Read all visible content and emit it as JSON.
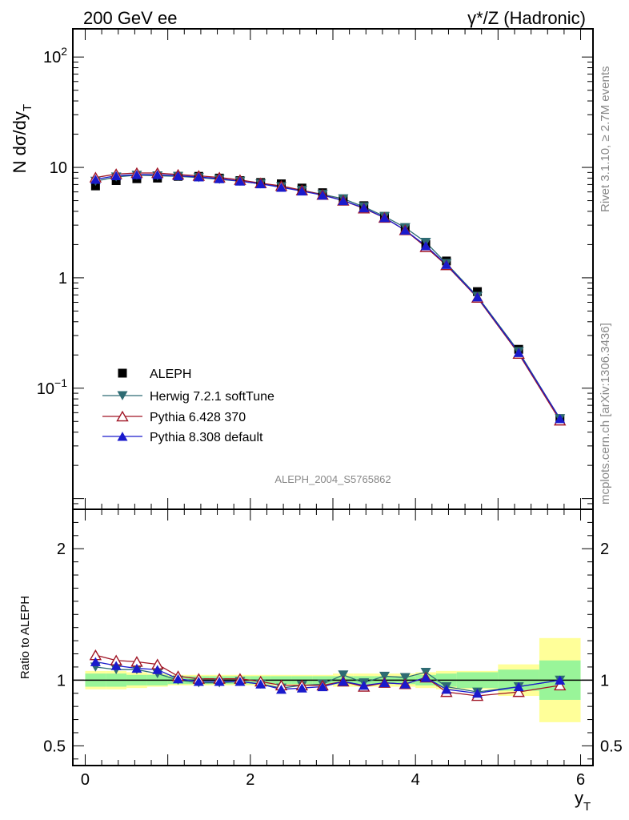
{
  "header": {
    "left": "200 GeV ee",
    "right": "γ*/Z (Hadronic)"
  },
  "side_labels": {
    "rivet": "Rivet 3.1.10, ≥ 2.7M events",
    "mcplots": "mcplots.cern.ch [arXiv:1306.3436]"
  },
  "analysis_id": "ALEPH_2004_S5765862",
  "chart_data": [
    {
      "type": "scatter",
      "panel": "main",
      "ylabel": "N dσ/dy",
      "ylabel_sub": "T",
      "xlabel": "y",
      "xlabel_sub": "T",
      "yscale": "log",
      "xlim": [
        -0.15,
        6.15
      ],
      "ylim": [
        0.008,
        180
      ],
      "ytick_labels": [
        {
          "value": 100,
          "base": "10",
          "exp": "2"
        },
        {
          "value": 10,
          "base": "10",
          "exp": ""
        },
        {
          "value": 1,
          "base": "1",
          "exp": ""
        },
        {
          "value": 0.1,
          "base": "10",
          "exp": "−1"
        }
      ],
      "x": [
        0.125,
        0.375,
        0.625,
        0.875,
        1.125,
        1.375,
        1.625,
        1.875,
        2.125,
        2.375,
        2.625,
        2.875,
        3.125,
        3.375,
        3.625,
        3.875,
        4.125,
        4.375,
        4.75,
        5.25,
        5.75
      ],
      "series": [
        {
          "name": "ALEPH",
          "style": "square",
          "color": "#000000",
          "values": [
            6.8,
            7.6,
            7.9,
            8.0,
            8.3,
            8.3,
            8.0,
            7.6,
            7.3,
            7.1,
            6.5,
            5.9,
            5.1,
            4.5,
            3.6,
            2.8,
            2.0,
            1.42,
            0.75,
            0.225,
            0.053
          ]
        },
        {
          "name": "Herwig 7.2.1 softTune",
          "style": "triangle-down",
          "color": "#2e6b73",
          "values": [
            7.5,
            8.2,
            8.5,
            8.4,
            8.3,
            8.1,
            7.8,
            7.5,
            7.1,
            6.7,
            6.2,
            5.7,
            5.2,
            4.4,
            3.6,
            2.85,
            2.1,
            1.35,
            0.68,
            0.215,
            0.053
          ]
        },
        {
          "name": "Pythia 6.428 370",
          "style": "triangle-open",
          "color": "#a01525",
          "values": [
            8.1,
            8.7,
            8.9,
            8.9,
            8.6,
            8.4,
            8.1,
            7.7,
            7.2,
            6.8,
            6.2,
            5.65,
            5.0,
            4.25,
            3.5,
            2.7,
            1.9,
            1.3,
            0.66,
            0.205,
            0.051
          ]
        },
        {
          "name": "Pythia 8.308 default",
          "style": "triangle-up",
          "color": "#1a1acc",
          "values": [
            7.8,
            8.4,
            8.6,
            8.6,
            8.4,
            8.2,
            7.9,
            7.5,
            7.1,
            6.6,
            6.1,
            5.6,
            5.0,
            4.3,
            3.5,
            2.7,
            1.95,
            1.32,
            0.67,
            0.21,
            0.053
          ]
        }
      ]
    },
    {
      "type": "scatter",
      "panel": "ratio",
      "ylabel": "Ratio to ALEPH",
      "xlabel": "y",
      "xlabel_sub": "T",
      "xlim": [
        -0.15,
        6.15
      ],
      "ylim": [
        0.35,
        2.3
      ],
      "ytick_labels": [
        {
          "value": 2,
          "label": "2"
        },
        {
          "value": 1,
          "label": "1"
        },
        {
          "value": 0.5,
          "label": "0.5"
        }
      ],
      "xtick_labels": [
        {
          "value": 0,
          "label": "0"
        },
        {
          "value": 2,
          "label": "2"
        },
        {
          "value": 4,
          "label": "4"
        },
        {
          "value": 6,
          "label": "6"
        }
      ],
      "x": [
        0.125,
        0.375,
        0.625,
        0.875,
        1.125,
        1.375,
        1.625,
        1.875,
        2.125,
        2.375,
        2.625,
        2.875,
        3.125,
        3.375,
        3.625,
        3.875,
        4.125,
        4.375,
        4.75,
        5.25,
        5.75
      ],
      "bands": {
        "edges": [
          0,
          0.25,
          0.5,
          0.75,
          1.0,
          1.25,
          1.5,
          1.75,
          2.0,
          2.25,
          2.5,
          2.75,
          3.0,
          3.25,
          3.5,
          3.75,
          4.0,
          4.25,
          4.5,
          5.0,
          5.5,
          6.0
        ],
        "green": [
          0.05,
          0.05,
          0.04,
          0.04,
          0.03,
          0.03,
          0.03,
          0.03,
          0.03,
          0.03,
          0.03,
          0.03,
          0.03,
          0.03,
          0.03,
          0.03,
          0.04,
          0.05,
          0.06,
          0.08,
          0.15
        ],
        "yellow": [
          0.07,
          0.07,
          0.06,
          0.05,
          0.04,
          0.04,
          0.04,
          0.04,
          0.04,
          0.04,
          0.04,
          0.04,
          0.05,
          0.05,
          0.05,
          0.05,
          0.06,
          0.07,
          0.07,
          0.12,
          0.32
        ],
        "green_color": "#99f599",
        "yellow_color": "#ffff99"
      },
      "series": [
        {
          "name": "Herwig 7.2.1 softTune",
          "style": "triangle-down",
          "color": "#2e6b73",
          "values": [
            1.1,
            1.08,
            1.08,
            1.05,
            1.0,
            0.98,
            0.98,
            0.99,
            0.97,
            0.94,
            0.96,
            0.97,
            1.04,
            0.98,
            1.03,
            1.02,
            1.06,
            0.95,
            0.91,
            0.95,
            1.0
          ]
        },
        {
          "name": "Pythia 6.428 370",
          "style": "triangle-open",
          "color": "#a01525",
          "values": [
            1.19,
            1.15,
            1.14,
            1.12,
            1.03,
            1.01,
            1.01,
            1.01,
            0.99,
            0.96,
            0.96,
            0.96,
            0.99,
            0.95,
            0.98,
            0.97,
            1.02,
            0.91,
            0.88,
            0.91,
            0.96
          ]
        },
        {
          "name": "Pythia 8.308 default",
          "style": "triangle-up",
          "color": "#1a1acc",
          "values": [
            1.14,
            1.11,
            1.09,
            1.08,
            1.01,
            0.99,
            0.99,
            0.99,
            0.97,
            0.93,
            0.94,
            0.95,
            0.99,
            0.96,
            0.98,
            0.97,
            1.02,
            0.93,
            0.9,
            0.95,
            1.0
          ]
        }
      ]
    }
  ]
}
